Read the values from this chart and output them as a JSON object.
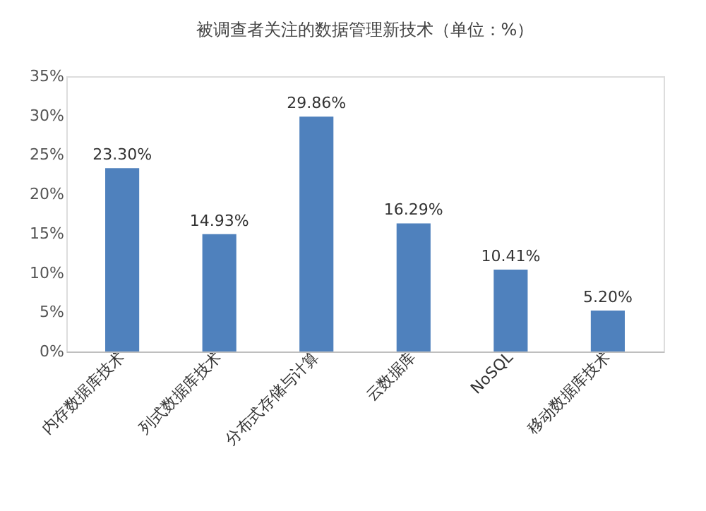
{
  "chart_data": {
    "type": "bar",
    "title": "被调查者关注的数据管理新技术（单位：%）",
    "categories": [
      "内存数据库技术",
      "列式数据库技术",
      "分布式存储与计算",
      "云数据库",
      "NoSQL",
      "移动数据库技术"
    ],
    "values": [
      23.3,
      14.93,
      29.86,
      16.29,
      10.41,
      5.2
    ],
    "value_labels": [
      "23.30%",
      "14.93%",
      "29.86%",
      "16.29%",
      "10.41%",
      "5.20%"
    ],
    "color": "#4f81bd",
    "ylim": [
      0,
      35
    ],
    "yticks": [
      {
        "value": 0,
        "label": "0%"
      },
      {
        "value": 5,
        "label": "5%"
      },
      {
        "value": 10,
        "label": "10%"
      },
      {
        "value": 15,
        "label": "15%"
      },
      {
        "value": 20,
        "label": "20%"
      },
      {
        "value": 25,
        "label": "25%"
      },
      {
        "value": 30,
        "label": "30%"
      },
      {
        "value": 35,
        "label": "35%"
      }
    ],
    "grid": false
  }
}
